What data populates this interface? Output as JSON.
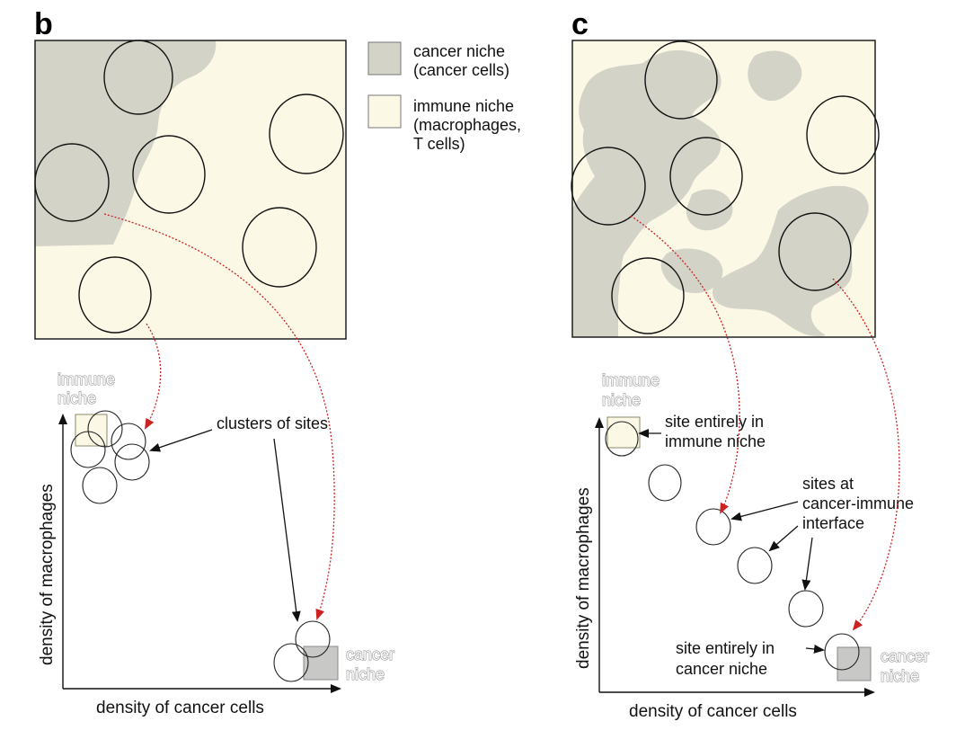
{
  "panels": {
    "b": {
      "label": "b",
      "xlabel": "density of cancer cells",
      "ylabel": "density of macrophages"
    },
    "c": {
      "label": "c",
      "xlabel": "density of cancer cells",
      "ylabel": "density of macrophages"
    }
  },
  "legend": {
    "cancer_line1": "cancer niche",
    "cancer_line2": "(cancer cells)",
    "immune_line1": "immune niche",
    "immune_line2": "(macrophages,",
    "immune_line3": "T cells)"
  },
  "niche_labels": {
    "immune_line1": "immune",
    "immune_line2": "niche",
    "cancer_line1": "cancer",
    "cancer_line2": "niche"
  },
  "annotations_b": {
    "clusters": "clusters of sites"
  },
  "annotations_c": {
    "immune_site_line1": "site entirely in",
    "immune_site_line2": "immune niche",
    "interface_line1": "sites at",
    "interface_line2": "cancer-immune",
    "interface_line3": "interface",
    "cancer_site_line1": "site entirely in",
    "cancer_site_line2": "cancer niche"
  },
  "colors": {
    "cancer_niche": "#d3d3c8",
    "immune_niche": "#fcf8e6",
    "arrow_red": "#cc2222",
    "outline": "#111111"
  }
}
